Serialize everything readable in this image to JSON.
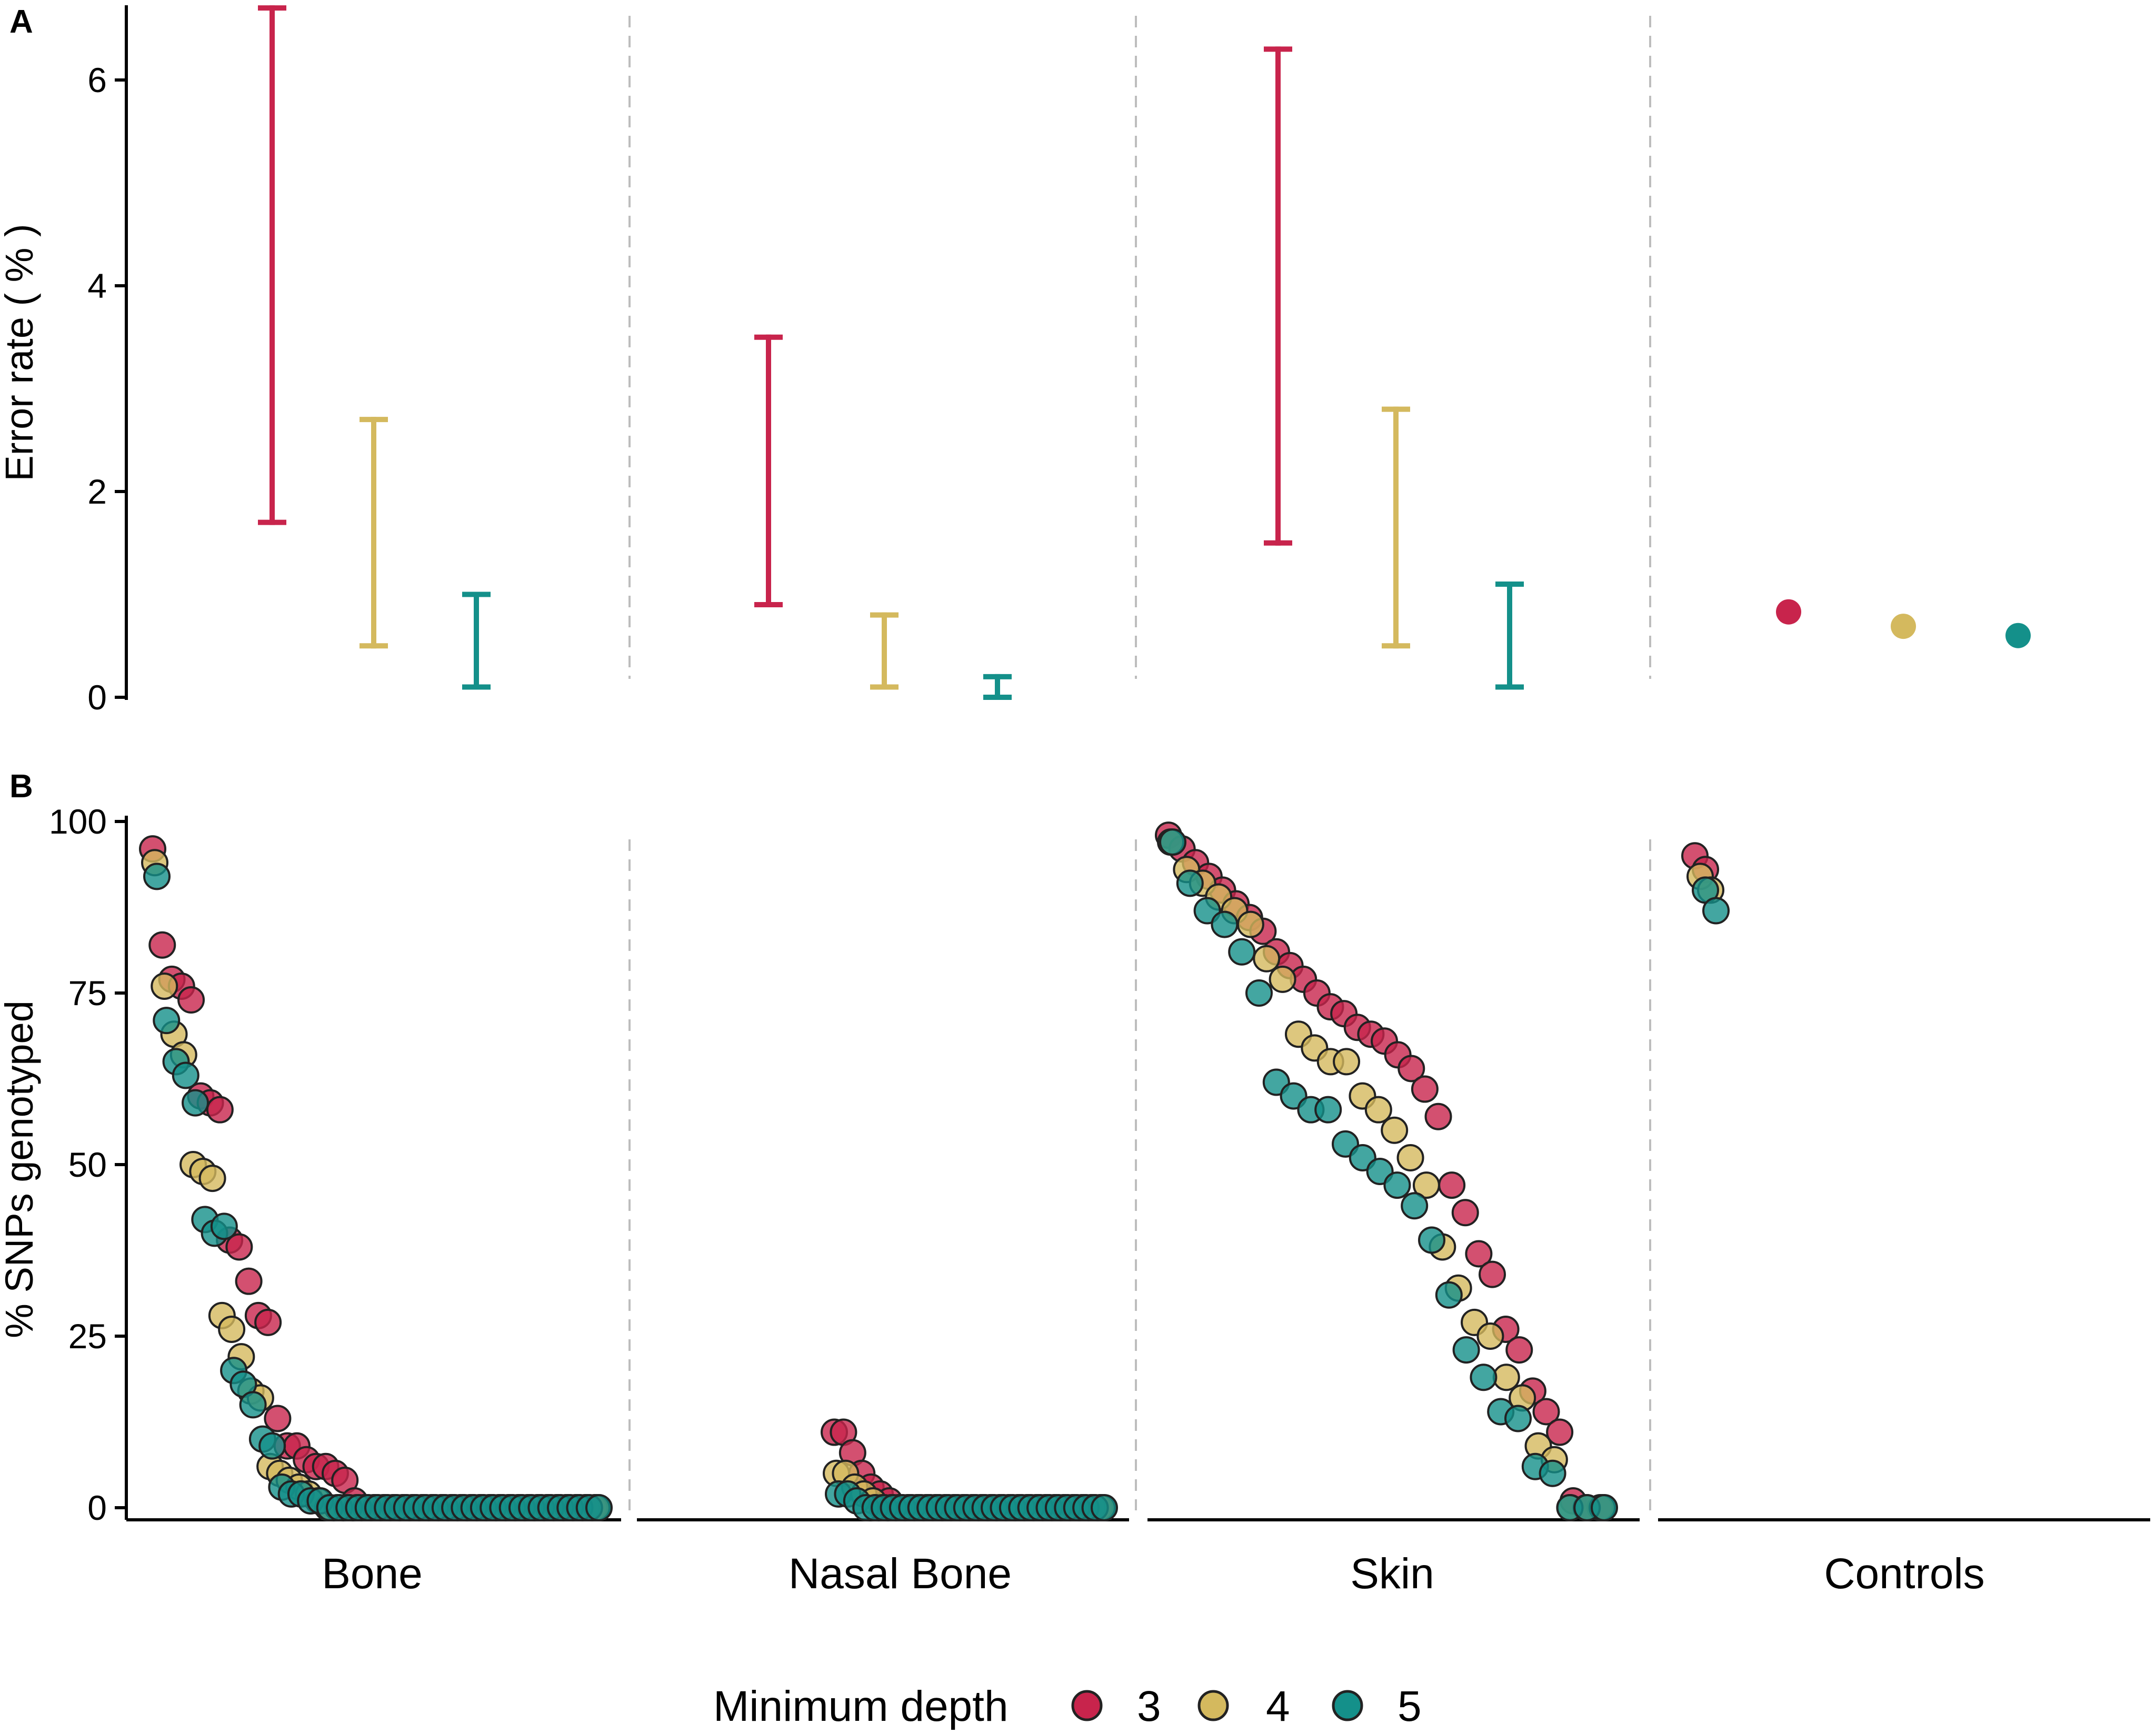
{
  "chart_data": [
    {
      "panel": "A",
      "type": "errorbar",
      "ylabel": "Error rate ( % )",
      "ylim": [
        0,
        6.7
      ],
      "yticks": [
        0,
        2,
        4,
        6
      ],
      "facets": [
        "Bone",
        "Nasal Bone",
        "Skin",
        "Controls"
      ],
      "series": [
        {
          "name": "3",
          "color": "#C8244C",
          "intervals": [
            [
              1.7,
              6.7
            ],
            [
              0.9,
              3.5
            ],
            [
              1.5,
              6.3
            ],
            null
          ],
          "points": [
            null,
            null,
            null,
            0.83
          ]
        },
        {
          "name": "4",
          "color": "#D4B95E",
          "intervals": [
            [
              0.5,
              2.7
            ],
            [
              0.1,
              0.8
            ],
            [
              0.5,
              2.8
            ],
            null
          ],
          "points": [
            null,
            null,
            null,
            0.69
          ]
        },
        {
          "name": "5",
          "color": "#14908A",
          "intervals": [
            [
              0.1,
              1.0
            ],
            [
              0.0,
              0.2
            ],
            [
              0.1,
              1.1
            ],
            null
          ],
          "points": [
            null,
            null,
            null,
            0.6
          ]
        }
      ]
    },
    {
      "panel": "B",
      "type": "scatter",
      "ylabel": "% SNPs genotyped",
      "ylim": [
        0,
        100
      ],
      "yticks": [
        0,
        25,
        50,
        75,
        100
      ],
      "facets": [
        "Bone",
        "Nasal Bone",
        "Skin",
        "Controls"
      ],
      "series": [
        {
          "name": "3",
          "color": "#C8244C",
          "facets": [
            [
              96,
              82,
              77,
              76,
              74,
              60,
              59,
              58,
              39,
              38,
              33,
              28,
              27,
              13,
              9,
              9,
              7,
              6,
              6,
              5,
              4,
              1,
              0,
              0,
              0,
              0,
              0,
              0,
              0,
              0,
              0,
              0,
              0,
              0,
              0,
              0,
              0,
              0,
              0,
              0,
              0,
              0,
              0,
              0,
              0,
              0,
              0
            ],
            [
              11,
              11,
              8,
              5,
              3,
              2,
              1,
              0,
              0,
              0,
              0,
              0,
              0,
              0,
              0,
              0,
              0,
              0,
              0,
              0,
              0,
              0,
              0,
              0,
              0,
              0,
              0,
              0,
              0,
              0
            ],
            [
              98,
              96,
              94,
              92,
              90,
              88,
              86,
              84,
              81,
              79,
              77,
              75,
              73,
              72,
              70,
              69,
              68,
              66,
              64,
              61,
              57,
              47,
              43,
              37,
              34,
              26,
              23,
              17,
              14,
              11,
              1,
              0,
              0
            ],
            [
              95,
              93
            ]
          ]
        },
        {
          "name": "4",
          "color": "#D4B95E",
          "facets": [
            [
              94,
              76,
              69,
              66,
              50,
              49,
              48,
              28,
              26,
              22,
              17,
              16,
              6,
              5,
              4,
              3,
              2,
              1,
              0,
              0,
              0,
              0,
              0,
              0,
              0,
              0,
              0,
              0,
              0,
              0,
              0,
              0,
              0,
              0,
              0,
              0,
              0,
              0,
              0,
              0,
              0,
              0,
              0,
              0,
              0,
              0,
              0
            ],
            [
              5,
              5,
              3,
              2,
              1,
              0,
              0,
              0,
              0,
              0,
              0,
              0,
              0,
              0,
              0,
              0,
              0,
              0,
              0,
              0,
              0,
              0,
              0,
              0,
              0,
              0,
              0,
              0,
              0,
              0
            ],
            [
              97,
              93,
              91,
              89,
              87,
              85,
              80,
              77,
              69,
              67,
              65,
              65,
              60,
              58,
              55,
              51,
              47,
              38,
              32,
              27,
              25,
              19,
              16,
              9,
              7,
              0,
              0,
              0
            ],
            [
              92,
              90
            ]
          ]
        },
        {
          "name": "5",
          "color": "#14908A",
          "facets": [
            [
              92,
              71,
              65,
              63,
              59,
              42,
              40,
              41,
              20,
              18,
              15,
              10,
              9,
              3,
              2,
              2,
              1,
              1,
              0,
              0,
              0,
              0,
              0,
              0,
              0,
              0,
              0,
              0,
              0,
              0,
              0,
              0,
              0,
              0,
              0,
              0,
              0,
              0,
              0,
              0,
              0,
              0,
              0,
              0,
              0,
              0,
              0
            ],
            [
              2,
              2,
              1,
              0,
              0,
              0,
              0,
              0,
              0,
              0,
              0,
              0,
              0,
              0,
              0,
              0,
              0,
              0,
              0,
              0,
              0,
              0,
              0,
              0,
              0,
              0,
              0,
              0,
              0,
              0
            ],
            [
              97,
              91,
              87,
              85,
              81,
              75,
              62,
              60,
              58,
              58,
              53,
              51,
              49,
              47,
              44,
              39,
              31,
              23,
              19,
              14,
              13,
              6,
              5,
              0,
              0,
              0
            ],
            [
              90,
              87
            ]
          ]
        }
      ]
    }
  ],
  "labels": {
    "panel_a": "A",
    "panel_b": "B",
    "a_ylabel": "Error rate ( % )",
    "b_ylabel": "% SNPs genotyped",
    "a_ticks": [
      "0",
      "2",
      "4",
      "6"
    ],
    "b_ticks": [
      "0",
      "25",
      "50",
      "75",
      "100"
    ],
    "facets": [
      "Bone",
      "Nasal Bone",
      "Skin",
      "Controls"
    ],
    "legend_title": "Minimum depth",
    "legend_items": [
      "3",
      "4",
      "5"
    ]
  },
  "colors": {
    "depth3": "#C8244C",
    "depth4": "#D4B95E",
    "depth5": "#14908A",
    "separator": "#bdbdbd"
  }
}
